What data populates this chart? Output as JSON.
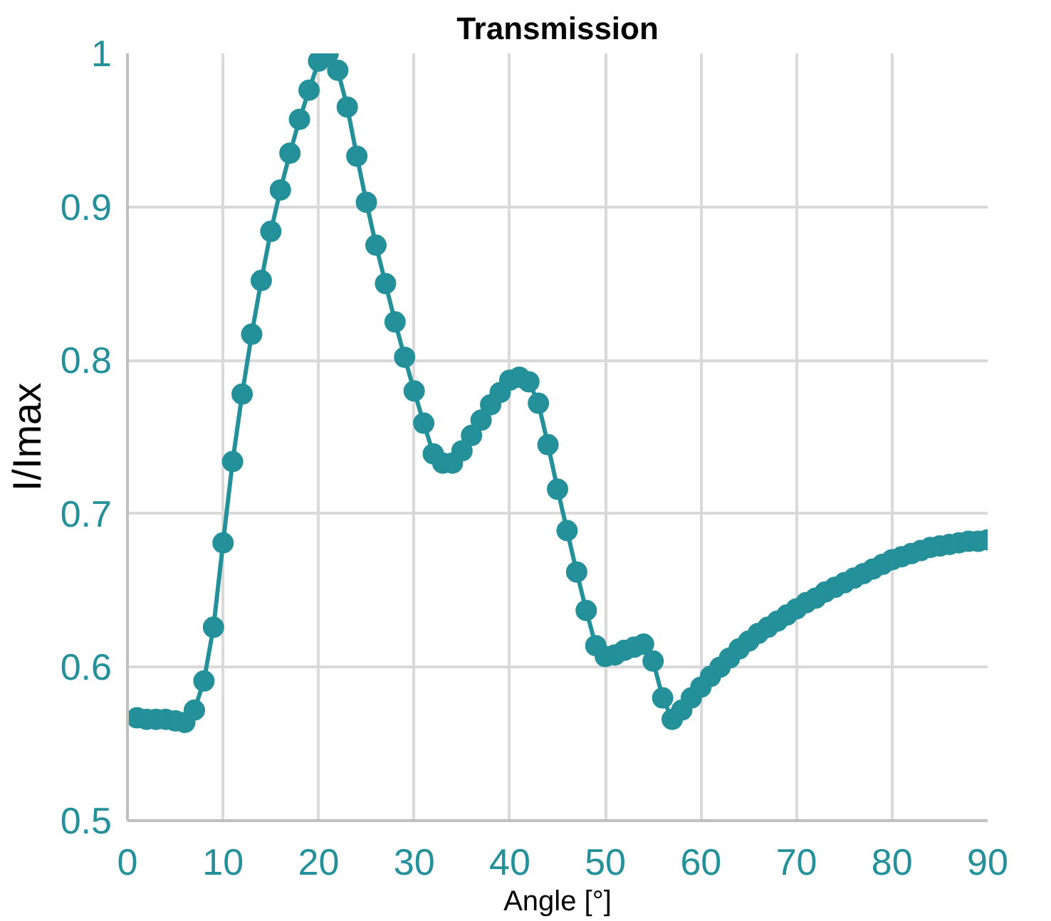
{
  "chart_data": {
    "type": "line",
    "title": "Transmission",
    "xlabel": "Angle [°]",
    "ylabel": "I/Imax",
    "x": [
      1,
      2,
      3,
      4,
      5,
      6,
      7,
      8,
      9,
      10,
      11,
      12,
      13,
      14,
      15,
      16,
      17,
      18,
      19,
      20,
      21,
      22,
      23,
      24,
      25,
      26,
      27,
      28,
      29,
      30,
      31,
      32,
      33,
      34,
      35,
      36,
      37,
      38,
      39,
      40,
      41,
      42,
      43,
      44,
      45,
      46,
      47,
      48,
      49,
      50,
      51,
      52,
      53,
      54,
      55,
      56,
      57,
      58,
      59,
      60,
      61,
      62,
      63,
      64,
      65,
      66,
      67,
      68,
      69,
      70,
      71,
      72,
      73,
      74,
      75,
      76,
      77,
      78,
      79,
      80,
      81,
      82,
      83,
      84,
      85,
      86,
      87,
      88,
      89,
      90
    ],
    "series": [
      {
        "color": "#23909a",
        "values": [
          0.567,
          0.566,
          0.566,
          0.566,
          0.565,
          0.564,
          0.572,
          0.591,
          0.626,
          0.681,
          0.734,
          0.778,
          0.817,
          0.852,
          0.884,
          0.911,
          0.935,
          0.957,
          0.976,
          0.995,
          1.0,
          0.989,
          0.965,
          0.933,
          0.903,
          0.875,
          0.85,
          0.825,
          0.802,
          0.78,
          0.759,
          0.739,
          0.733,
          0.733,
          0.741,
          0.751,
          0.761,
          0.771,
          0.779,
          0.787,
          0.789,
          0.786,
          0.772,
          0.745,
          0.716,
          0.689,
          0.662,
          0.637,
          0.614,
          0.607,
          0.608,
          0.611,
          0.613,
          0.615,
          0.604,
          0.58,
          0.566,
          0.572,
          0.58,
          0.587,
          0.594,
          0.6,
          0.606,
          0.612,
          0.617,
          0.622,
          0.626,
          0.63,
          0.634,
          0.638,
          0.642,
          0.645,
          0.649,
          0.652,
          0.655,
          0.658,
          0.661,
          0.664,
          0.667,
          0.67,
          0.672,
          0.674,
          0.676,
          0.678,
          0.679,
          0.68,
          0.681,
          0.682,
          0.682,
          0.683
        ]
      }
    ],
    "xlim": [
      0,
      90
    ],
    "xticks": [
      0,
      10,
      20,
      30,
      40,
      50,
      60,
      70,
      80,
      90
    ],
    "ylim": [
      0.5,
      1
    ],
    "yticks": [
      {
        "value": 0.5,
        "label": "0.5"
      },
      {
        "value": 0.6,
        "label": "0.6"
      },
      {
        "value": 0.7,
        "label": "0.7"
      },
      {
        "value": 0.8,
        "label": "0.8"
      },
      {
        "value": 0.9,
        "label": "0.9"
      },
      {
        "value": 1,
        "label": "1"
      }
    ],
    "grid": true,
    "marker": "circle",
    "line_style": "solid"
  }
}
